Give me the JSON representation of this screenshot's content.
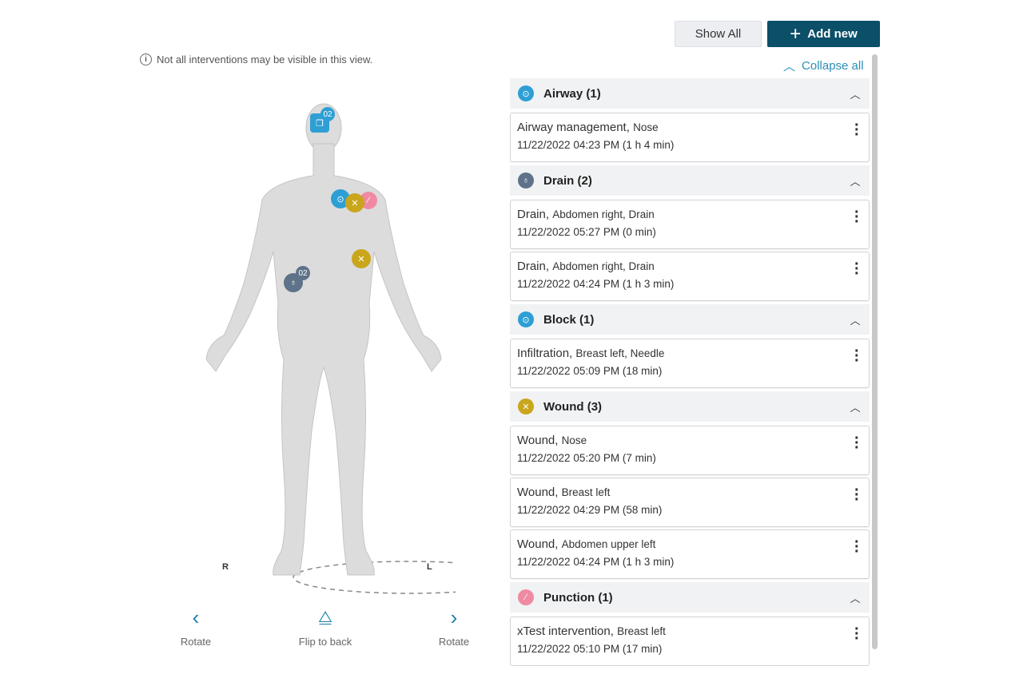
{
  "notice": "Not all interventions may be visible in this view.",
  "toolbar": {
    "show_all": "Show All",
    "add_new": "Add new"
  },
  "collapse_all": "Collapse all",
  "colors": {
    "airway": "#2e9fd4",
    "drain": "#5e7289",
    "block": "#2e9fd4",
    "wound": "#c9a61c",
    "punction": "#ef8aa2",
    "primary": "#0b4f68",
    "link": "#2a8fb8"
  },
  "sections": [
    {
      "title": "Airway (1)",
      "icon": "airway-icon",
      "color": "#2e9fd4",
      "items": [
        {
          "name": "Airway management,",
          "loc": "Nose",
          "time": "11/22/2022 04:23 PM (1 h 4 min)"
        }
      ]
    },
    {
      "title": "Drain (2)",
      "icon": "drain-icon",
      "color": "#5e7289",
      "items": [
        {
          "name": "Drain,",
          "loc": "Abdomen right, Drain",
          "time": "11/22/2022 05:27 PM (0 min)"
        },
        {
          "name": "Drain,",
          "loc": "Abdomen right, Drain",
          "time": "11/22/2022 04:24 PM (1 h 3 min)"
        }
      ]
    },
    {
      "title": "Block (1)",
      "icon": "block-icon",
      "color": "#2e9fd4",
      "items": [
        {
          "name": "Infiltration,",
          "loc": "Breast left, Needle",
          "time": "11/22/2022 05:09 PM (18 min)"
        }
      ]
    },
    {
      "title": "Wound (3)",
      "icon": "wound-icon",
      "color": "#c9a61c",
      "items": [
        {
          "name": "Wound,",
          "loc": "Nose",
          "time": "11/22/2022 05:20 PM (7 min)"
        },
        {
          "name": "Wound,",
          "loc": "Breast left",
          "time": "11/22/2022 04:29 PM (58 min)"
        },
        {
          "name": "Wound,",
          "loc": "Abdomen upper left",
          "time": "11/22/2022 04:24 PM (1 h 3 min)"
        }
      ]
    },
    {
      "title": "Punction (1)",
      "icon": "punction-icon",
      "color": "#ef8aa2",
      "items": [
        {
          "name": "xTest intervention,",
          "loc": "Breast left",
          "time": "11/22/2022 05:10 PM (17 min)"
        }
      ]
    }
  ],
  "figure": {
    "side_right": "R",
    "side_left": "L",
    "head_badge": "02",
    "drain_badge": "02"
  },
  "controls": {
    "rotate_left": "Rotate",
    "flip": "Flip to back",
    "rotate_right": "Rotate"
  }
}
